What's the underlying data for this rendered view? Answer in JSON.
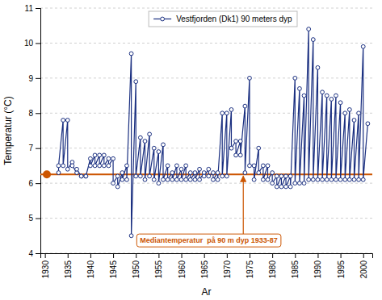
{
  "chart_data": {
    "type": "line",
    "xlabel": "Ar",
    "ylabel": "Temperatur (°C)",
    "x": [
      1933,
      1933,
      1934,
      1934,
      1935,
      1935,
      1936,
      1936,
      1937,
      1937,
      1938,
      1938,
      1939,
      1939,
      1940,
      1940,
      1941,
      1941,
      1942,
      1942,
      1943,
      1943,
      1944,
      1944,
      1945,
      1945,
      1946,
      1946,
      1947,
      1947,
      1948,
      1948,
      1949,
      1949,
      1950,
      1950,
      1951,
      1951,
      1952,
      1952,
      1953,
      1953,
      1954,
      1954,
      1955,
      1955,
      1956,
      1956,
      1957,
      1957,
      1958,
      1958,
      1959,
      1959,
      1960,
      1960,
      1961,
      1961,
      1962,
      1962,
      1963,
      1963,
      1964,
      1964,
      1965,
      1965,
      1966,
      1966,
      1967,
      1967,
      1968,
      1968,
      1969,
      1969,
      1970,
      1970,
      1971,
      1971,
      1972,
      1972,
      1973,
      1973,
      1974,
      1974,
      1975,
      1975,
      1976,
      1976,
      1977,
      1977,
      1978,
      1978,
      1979,
      1979,
      1980,
      1980,
      1981,
      1981,
      1982,
      1982,
      1983,
      1983,
      1984,
      1984,
      1985,
      1985,
      1986,
      1986,
      1987,
      1987,
      1988,
      1988,
      1989,
      1989,
      1990,
      1990,
      1991,
      1991,
      1992,
      1992,
      1993,
      1993,
      1994,
      1994,
      1995,
      1995,
      1996,
      1996,
      1997,
      1997,
      1998,
      1998,
      1999,
      1999,
      2000,
      2000,
      2001
    ],
    "series": [
      {
        "name": "Vestfjorden (Dk1) 90 meters dyp",
        "color": "#1a2f80",
        "marker": "circle",
        "line_style": "solid",
        "values": [
          6.3,
          6.5,
          7.8,
          6.5,
          7.8,
          6.4,
          6.6,
          6.5,
          6.3,
          6.4,
          6.2,
          6.2,
          6.2,
          6.2,
          6.7,
          6.5,
          6.8,
          6.5,
          6.8,
          6.5,
          6.8,
          6.5,
          6.7,
          6.5,
          6.7,
          6.0,
          6.2,
          5.9,
          6.3,
          6.1,
          6.5,
          6.1,
          9.7,
          4.5,
          8.9,
          6.2,
          7.3,
          6.2,
          7.2,
          6.1,
          7.4,
          6.2,
          7.0,
          6.1,
          6.9,
          6.0,
          7.1,
          6.1,
          6.5,
          6.1,
          6.3,
          6.1,
          6.5,
          6.1,
          6.4,
          6.1,
          6.5,
          6.1,
          6.3,
          6.1,
          6.3,
          6.1,
          6.4,
          6.1,
          6.3,
          6.2,
          6.4,
          6.2,
          6.3,
          6.1,
          6.3,
          6.1,
          8.0,
          6.2,
          8.0,
          6.2,
          8.1,
          7.0,
          7.2,
          6.8,
          7.2,
          6.8,
          8.2,
          6.3,
          9.0,
          6.5,
          6.5,
          6.1,
          7.0,
          6.3,
          6.5,
          6.1,
          6.5,
          6.1,
          6.3,
          6.0,
          6.2,
          5.9,
          6.2,
          5.9,
          6.2,
          5.9,
          6.2,
          5.9,
          9.0,
          6.0,
          8.7,
          6.0,
          8.5,
          6.0,
          10.4,
          6.1,
          10.1,
          6.1,
          9.3,
          6.1,
          8.6,
          6.1,
          8.5,
          6.1,
          8.4,
          6.1,
          8.5,
          6.1,
          8.3,
          6.1,
          8.0,
          6.1,
          8.1,
          6.1,
          7.8,
          6.1,
          8.0,
          6.1,
          9.9,
          6.1,
          7.7
        ]
      }
    ],
    "annotations": [
      {
        "text": "Mediantemperatur  på 90 m dyp 1933-87",
        "y": 6.25,
        "color": "#cc5500"
      }
    ],
    "xlim": [
      1929,
      2002
    ],
    "ylim": [
      4,
      11
    ],
    "xticks": [
      1930,
      1935,
      1940,
      1945,
      1950,
      1955,
      1960,
      1965,
      1970,
      1975,
      1980,
      1985,
      1990,
      1995,
      2000
    ],
    "yticks": [
      4,
      5,
      6,
      7,
      8,
      9,
      10,
      11
    ],
    "grid": "y",
    "legend": "top"
  }
}
